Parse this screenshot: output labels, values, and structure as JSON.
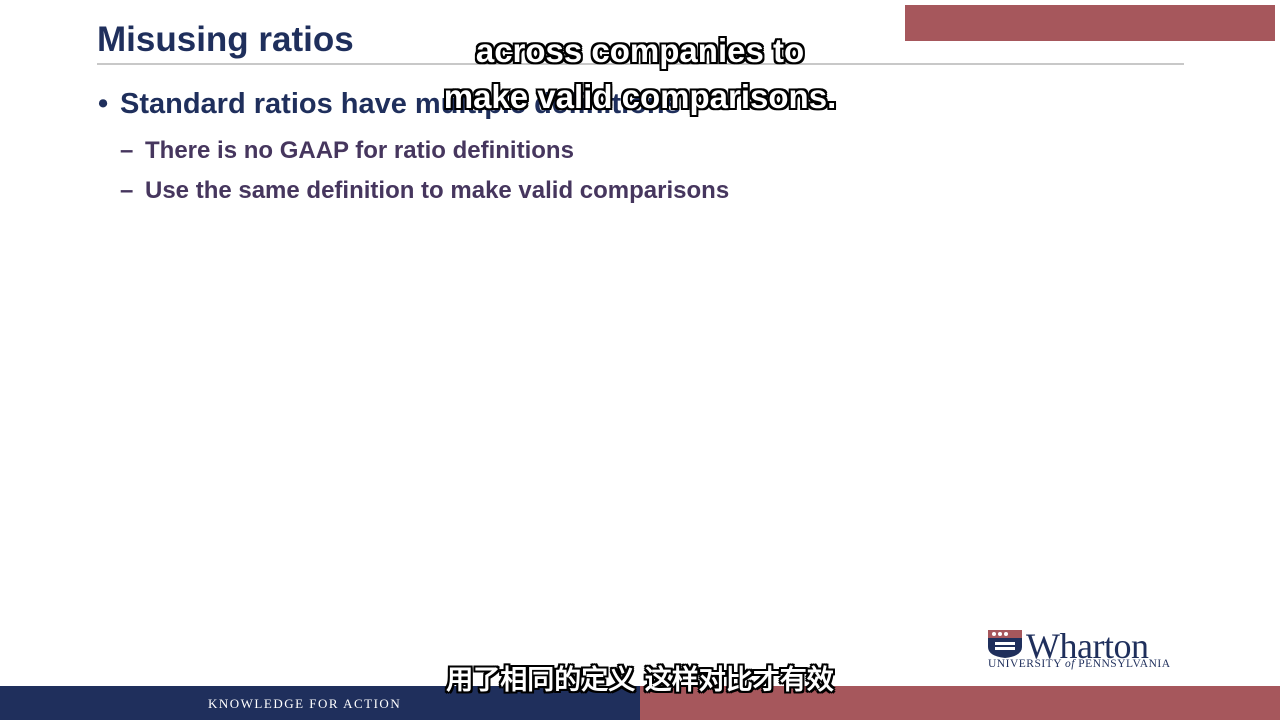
{
  "slide": {
    "title": "Misusing ratios",
    "bullet_marker": "•",
    "dash_marker": "–",
    "bullet": "Standard ratios have multiple definitions",
    "sub_bullets": [
      "There is no GAAP for ratio definitions",
      "Use the same definition to make valid comparisons"
    ]
  },
  "subtitles": {
    "english_line_1": "across companies to",
    "english_line_2": "make valid comparisons.",
    "chinese": "用了相同的定义 这样对比才有效"
  },
  "branding": {
    "logo_word": "Wharton",
    "logo_sub_1": "UNIVERSITY",
    "logo_sub_of": "of",
    "logo_sub_2": "PENNSYLVANIA",
    "footer_tagline": "KNOWLEDGE FOR ACTION"
  },
  "colors": {
    "navy": "#1f2f5c",
    "maroon": "#a6575c",
    "sub_text": "#46365e"
  }
}
